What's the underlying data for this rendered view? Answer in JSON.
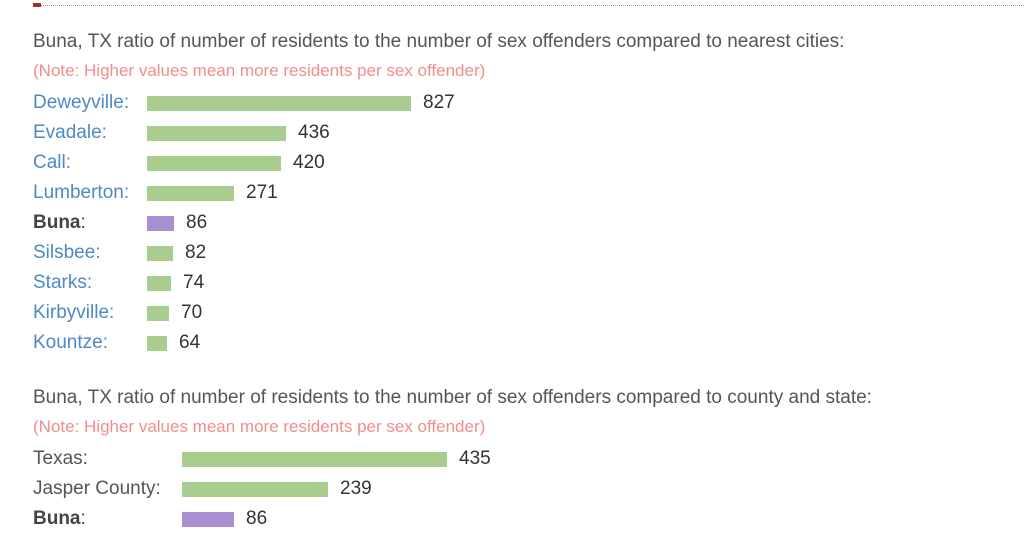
{
  "page": {
    "background": "#ffffff",
    "rule_color": "#999999",
    "rule_accent_color": "#993333"
  },
  "colors": {
    "title_text": "#555555",
    "note_text": "#f48c8c",
    "city_link": "#4e88c6",
    "value_text": "#333333",
    "bar_green": "#a8cd8f",
    "bar_purple": "#aa90d3",
    "highlight_label": "#444444"
  },
  "shared": {
    "colon": ":"
  },
  "chart_data": [
    {
      "type": "bar",
      "orientation": "horizontal",
      "title": "Buna, TX ratio of number of residents to the number of sex offenders compared to nearest cities:",
      "note": "(Note: Higher values mean more residents per sex offender)",
      "value_range": [
        0,
        827
      ],
      "rows": [
        {
          "label": "Deweyville",
          "value": 827,
          "bar_color": "#a8cd8f",
          "highlight": false
        },
        {
          "label": "Evadale",
          "value": 436,
          "bar_color": "#a8cd8f",
          "highlight": false
        },
        {
          "label": "Call",
          "value": 420,
          "bar_color": "#a8cd8f",
          "highlight": false
        },
        {
          "label": "Lumberton",
          "value": 271,
          "bar_color": "#a8cd8f",
          "highlight": false
        },
        {
          "label": "Buna",
          "value": 86,
          "bar_color": "#aa90d3",
          "highlight": true
        },
        {
          "label": "Silsbee",
          "value": 82,
          "bar_color": "#a8cd8f",
          "highlight": false
        },
        {
          "label": "Starks",
          "value": 74,
          "bar_color": "#a8cd8f",
          "highlight": false
        },
        {
          "label": "Kirbyville",
          "value": 70,
          "bar_color": "#a8cd8f",
          "highlight": false
        },
        {
          "label": "Kountze",
          "value": 64,
          "bar_color": "#a8cd8f",
          "highlight": false
        }
      ]
    },
    {
      "type": "bar",
      "orientation": "horizontal",
      "title": "Buna, TX ratio of number of residents to the number of sex offenders compared to county and state:",
      "note": "(Note: Higher values mean more residents per sex offender)",
      "value_range": [
        0,
        435
      ],
      "rows": [
        {
          "label": "Texas",
          "value": 435,
          "bar_color": "#a8cd8f",
          "highlight": false
        },
        {
          "label": "Jasper County",
          "value": 239,
          "bar_color": "#a8cd8f",
          "highlight": false
        },
        {
          "label": "Buna",
          "value": 86,
          "bar_color": "#aa90d3",
          "highlight": true
        }
      ]
    }
  ]
}
